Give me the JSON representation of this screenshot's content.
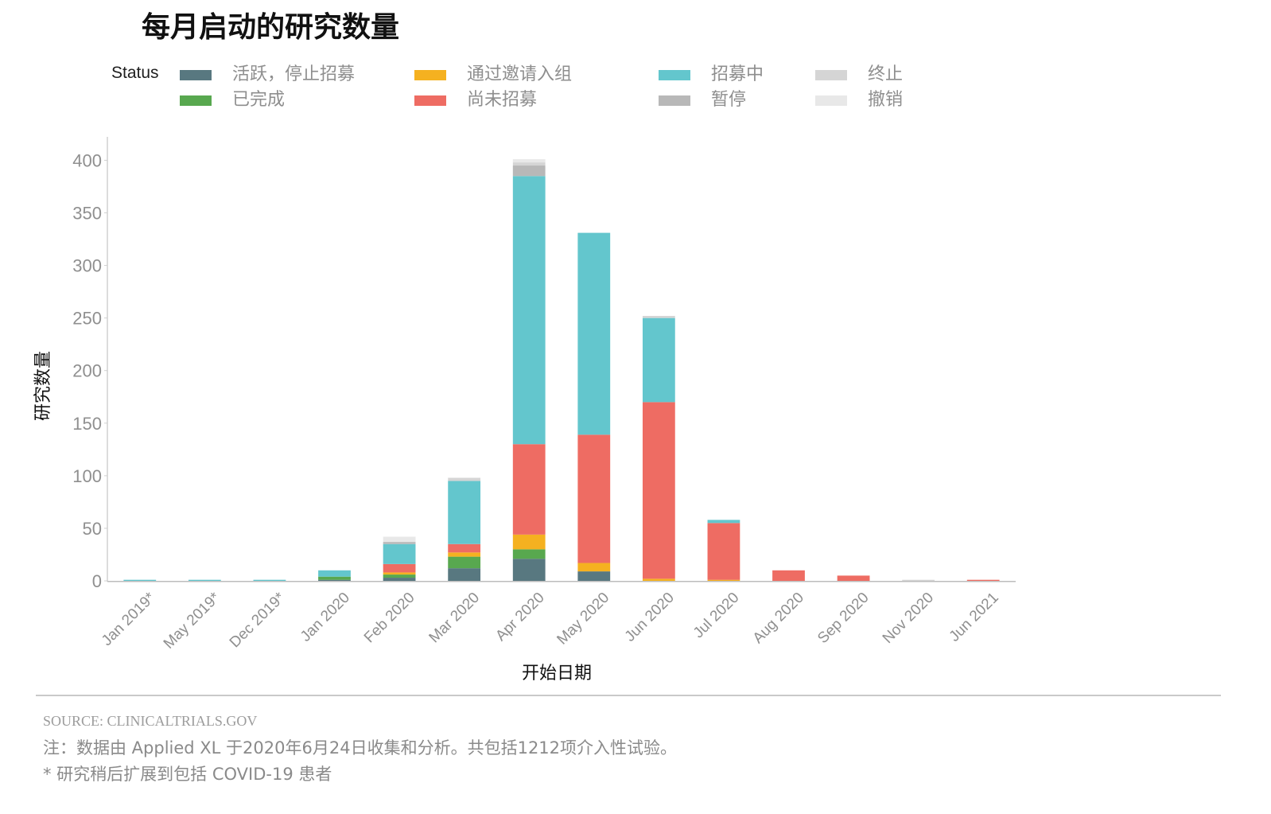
{
  "chart_data": {
    "type": "bar",
    "stacked": true,
    "title": "每月启动的研究数量",
    "xlabel": "开始日期",
    "ylabel": "研究数量",
    "legend_title": "Status",
    "legend_position": "top",
    "grid": false,
    "ylim": [
      0,
      420
    ],
    "yticks": [
      0,
      50,
      100,
      150,
      200,
      250,
      300,
      350,
      400
    ],
    "categories": [
      "Jan 2019*",
      "May 2019*",
      "Dec 2019*",
      "Jan 2020",
      "Feb 2020",
      "Mar 2020",
      "Apr 2020",
      "May 2020",
      "Jun 2020",
      "Jul 2020",
      "Aug 2020",
      "Sep 2020",
      "Nov 2020",
      "Jun 2021"
    ],
    "series": [
      {
        "name": "活跃，停止招募",
        "color": "#587880",
        "values": [
          0,
          0,
          0,
          1,
          3,
          12,
          21,
          9,
          0,
          0,
          0,
          0,
          0,
          0
        ]
      },
      {
        "name": "已完成",
        "color": "#58a84f",
        "values": [
          0,
          0,
          0,
          3,
          3,
          11,
          9,
          0,
          0,
          0,
          0,
          0,
          0,
          0
        ]
      },
      {
        "name": "通过邀请入组",
        "color": "#f5b120",
        "values": [
          0,
          0,
          0,
          0,
          2,
          4,
          14,
          8,
          2,
          1,
          0,
          0,
          0,
          0
        ]
      },
      {
        "name": "尚未招募",
        "color": "#ee6c63",
        "values": [
          0,
          0,
          0,
          0,
          8,
          8,
          86,
          122,
          168,
          54,
          10,
          5,
          0,
          1
        ]
      },
      {
        "name": "招募中",
        "color": "#63c6cd",
        "values": [
          1,
          1,
          1,
          6,
          19,
          60,
          255,
          192,
          80,
          3,
          0,
          0,
          0,
          0
        ]
      },
      {
        "name": "暂停",
        "color": "#b8b8b8",
        "values": [
          0,
          0,
          0,
          0,
          2,
          0,
          10,
          0,
          0,
          0,
          0,
          0,
          0,
          0
        ]
      },
      {
        "name": "终止",
        "color": "#d5d5d5",
        "values": [
          0,
          0,
          0,
          0,
          0,
          3,
          3,
          0,
          2,
          0,
          0,
          0,
          1,
          0
        ]
      },
      {
        "name": "撤销",
        "color": "#e8e8e8",
        "values": [
          0,
          0,
          0,
          0,
          5,
          0,
          3,
          0,
          0,
          0,
          0,
          0,
          0,
          0
        ]
      }
    ]
  },
  "footer": {
    "source": "SOURCE: CLINICALTRIALS.GOV",
    "note": "注：数据由 Applied XL 于2020年6月24日收集和分析。共包括1212项介入性试验。",
    "footnote": "* 研究稍后扩展到包括 COVID-19 患者"
  }
}
